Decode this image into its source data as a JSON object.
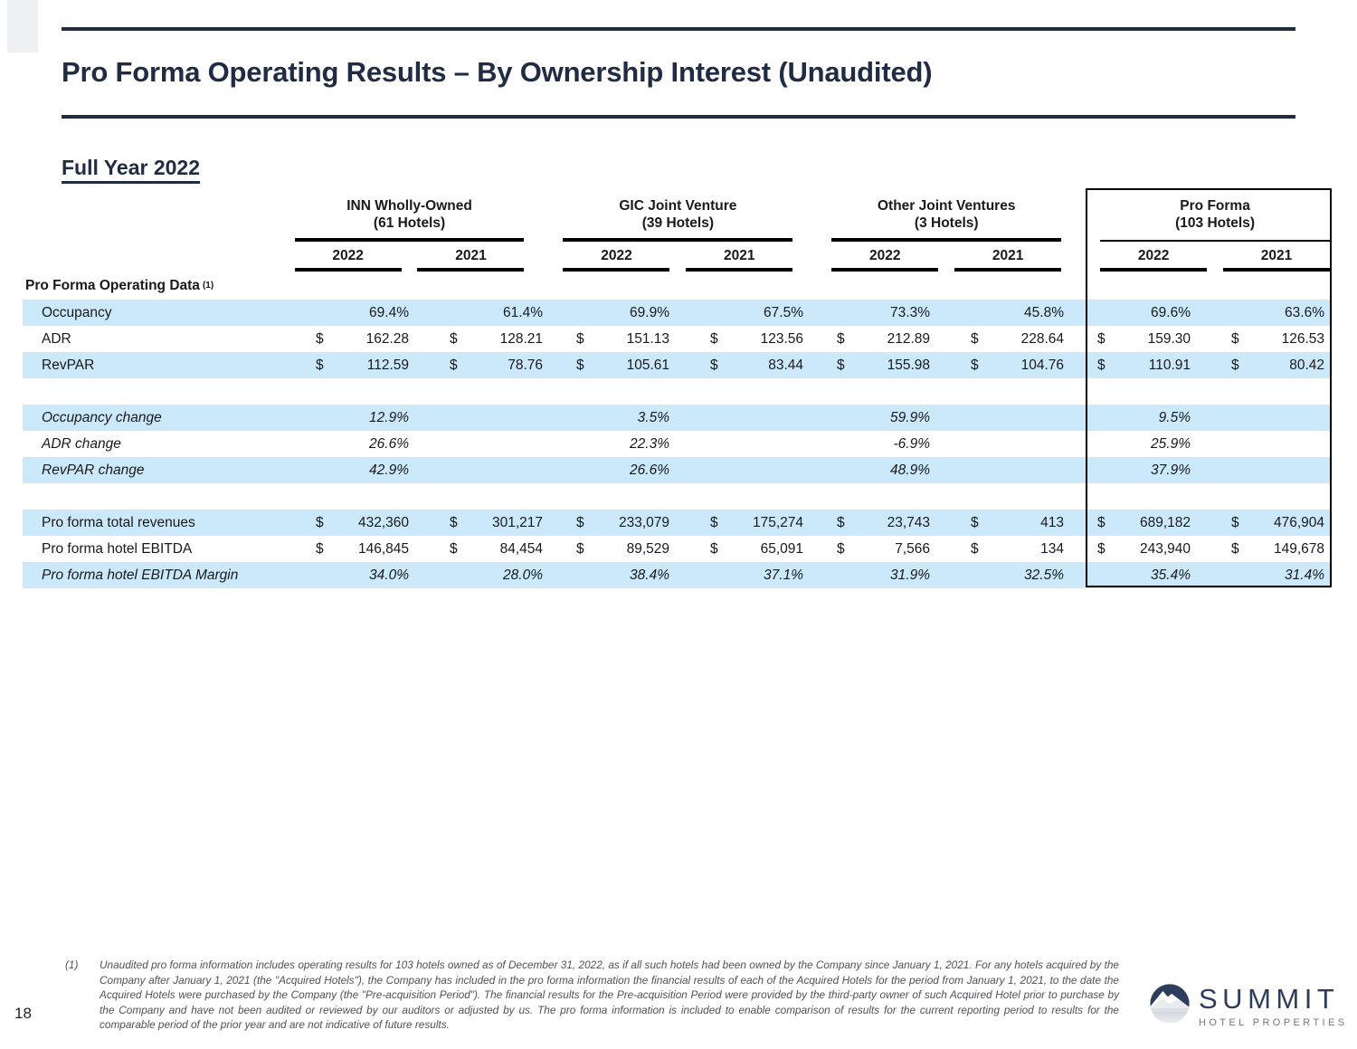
{
  "slide": {
    "title": "Pro Forma Operating Results – By Ownership Interest (Unaudited)",
    "subtitle": "Full Year 2022",
    "page_number": "18"
  },
  "table": {
    "section_label": "Pro Forma Operating Data",
    "section_note_ref": "(1)",
    "groups": [
      {
        "name": "INN Wholly-Owned",
        "hotels": "(61 Hotels)",
        "year1": "2022",
        "year2": "2021"
      },
      {
        "name": "GIC Joint Venture",
        "hotels": "(39 Hotels)",
        "year1": "2022",
        "year2": "2021"
      },
      {
        "name": "Other Joint Ventures",
        "hotels": "(3 Hotels)",
        "year1": "2022",
        "year2": "2021"
      },
      {
        "name": "Pro Forma",
        "hotels": "(103 Hotels)",
        "year1": "2022",
        "year2": "2021"
      }
    ],
    "rows": [
      {
        "label": "Occupancy",
        "italic": false,
        "shaded": true,
        "cells": [
          {
            "d": "",
            "v": "69.4%"
          },
          {
            "d": "",
            "v": "61.4%"
          },
          {
            "d": "",
            "v": "69.9%"
          },
          {
            "d": "",
            "v": "67.5%"
          },
          {
            "d": "",
            "v": "73.3%"
          },
          {
            "d": "",
            "v": "45.8%"
          },
          {
            "d": "",
            "v": "69.6%"
          },
          {
            "d": "",
            "v": "63.6%"
          }
        ]
      },
      {
        "label": "ADR",
        "italic": false,
        "shaded": false,
        "cells": [
          {
            "d": "$",
            "v": "162.28"
          },
          {
            "d": "$",
            "v": "128.21"
          },
          {
            "d": "$",
            "v": "151.13"
          },
          {
            "d": "$",
            "v": "123.56"
          },
          {
            "d": "$",
            "v": "212.89"
          },
          {
            "d": "$",
            "v": "228.64"
          },
          {
            "d": "$",
            "v": "159.30"
          },
          {
            "d": "$",
            "v": "126.53"
          }
        ]
      },
      {
        "label": "RevPAR",
        "italic": false,
        "shaded": true,
        "cells": [
          {
            "d": "$",
            "v": "112.59"
          },
          {
            "d": "$",
            "v": "78.76"
          },
          {
            "d": "$",
            "v": "105.61"
          },
          {
            "d": "$",
            "v": "83.44"
          },
          {
            "d": "$",
            "v": "155.98"
          },
          {
            "d": "$",
            "v": "104.76"
          },
          {
            "d": "$",
            "v": "110.91"
          },
          {
            "d": "$",
            "v": "80.42"
          }
        ]
      },
      {
        "type": "spacer"
      },
      {
        "label": "Occupancy change",
        "italic": true,
        "shaded": true,
        "cells": [
          {
            "d": "",
            "v": "12.9%"
          },
          {
            "d": "",
            "v": ""
          },
          {
            "d": "",
            "v": "3.5%"
          },
          {
            "d": "",
            "v": ""
          },
          {
            "d": "",
            "v": "59.9%"
          },
          {
            "d": "",
            "v": ""
          },
          {
            "d": "",
            "v": "9.5%"
          },
          {
            "d": "",
            "v": ""
          }
        ]
      },
      {
        "label": "ADR change",
        "italic": true,
        "shaded": false,
        "cells": [
          {
            "d": "",
            "v": "26.6%"
          },
          {
            "d": "",
            "v": ""
          },
          {
            "d": "",
            "v": "22.3%"
          },
          {
            "d": "",
            "v": ""
          },
          {
            "d": "",
            "v": "-6.9%"
          },
          {
            "d": "",
            "v": ""
          },
          {
            "d": "",
            "v": "25.9%"
          },
          {
            "d": "",
            "v": ""
          }
        ]
      },
      {
        "label": "RevPAR change",
        "italic": true,
        "shaded": true,
        "cells": [
          {
            "d": "",
            "v": "42.9%"
          },
          {
            "d": "",
            "v": ""
          },
          {
            "d": "",
            "v": "26.6%"
          },
          {
            "d": "",
            "v": ""
          },
          {
            "d": "",
            "v": "48.9%"
          },
          {
            "d": "",
            "v": ""
          },
          {
            "d": "",
            "v": "37.9%"
          },
          {
            "d": "",
            "v": ""
          }
        ]
      },
      {
        "type": "spacer"
      },
      {
        "label": "Pro forma total revenues",
        "italic": false,
        "shaded": true,
        "cells": [
          {
            "d": "$",
            "v": "432,360"
          },
          {
            "d": "$",
            "v": "301,217"
          },
          {
            "d": "$",
            "v": "233,079"
          },
          {
            "d": "$",
            "v": "175,274"
          },
          {
            "d": "$",
            "v": "23,743"
          },
          {
            "d": "$",
            "v": "413"
          },
          {
            "d": "$",
            "v": "689,182"
          },
          {
            "d": "$",
            "v": "476,904"
          }
        ]
      },
      {
        "label": "Pro forma hotel EBITDA",
        "italic": false,
        "shaded": false,
        "cells": [
          {
            "d": "$",
            "v": "146,845"
          },
          {
            "d": "$",
            "v": "84,454"
          },
          {
            "d": "$",
            "v": "89,529"
          },
          {
            "d": "$",
            "v": "65,091"
          },
          {
            "d": "$",
            "v": "7,566"
          },
          {
            "d": "$",
            "v": "134"
          },
          {
            "d": "$",
            "v": "243,940"
          },
          {
            "d": "$",
            "v": "149,678"
          }
        ]
      },
      {
        "label": "Pro forma hotel EBITDA Margin",
        "italic": true,
        "shaded": true,
        "cells": [
          {
            "d": "",
            "v": "34.0%"
          },
          {
            "d": "",
            "v": "28.0%"
          },
          {
            "d": "",
            "v": "38.4%"
          },
          {
            "d": "",
            "v": "37.1%"
          },
          {
            "d": "",
            "v": "31.9%"
          },
          {
            "d": "",
            "v": "32.5%"
          },
          {
            "d": "",
            "v": "35.4%"
          },
          {
            "d": "",
            "v": "31.4%"
          }
        ]
      }
    ]
  },
  "footnote": {
    "ref": "(1)",
    "text": "Unaudited pro forma information includes operating results for 103 hotels owned as of December 31, 2022, as if all such hotels had been owned by the Company since January 1, 2021. For any hotels acquired by the Company after January 1, 2021 (the \"Acquired Hotels\"), the Company has included in the pro forma information the financial results of each of the Acquired Hotels for the period from January 1, 2021, to the date the Acquired Hotels were purchased by the Company (the \"Pre-acquisition Period\"). The financial results for the Pre-acquisition Period were provided by the third-party owner of such Acquired Hotel prior to purchase by the Company and have not been audited or reviewed by our auditors or adjusted by us. The pro forma information is included to enable comparison of results for the current reporting period to results for the comparable period of the prior year and are not indicative of future results."
  },
  "logo": {
    "name": "SUMMIT",
    "tagline": "HOTEL PROPERTIES"
  }
}
